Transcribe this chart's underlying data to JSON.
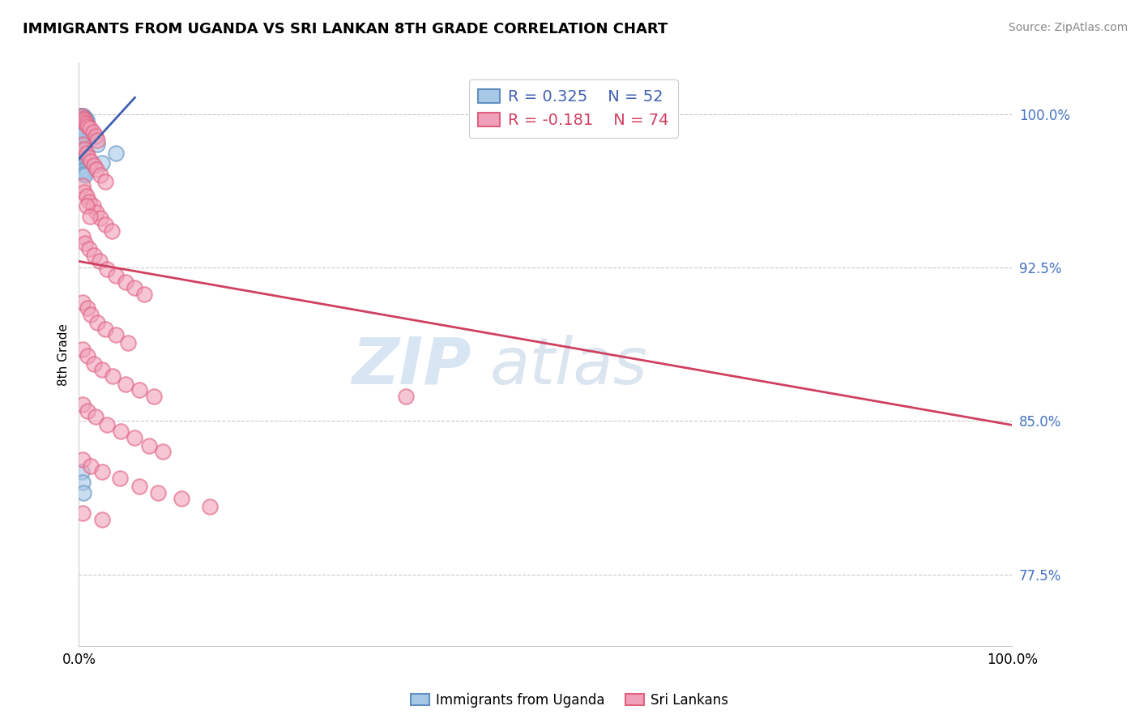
{
  "title": "IMMIGRANTS FROM UGANDA VS SRI LANKAN 8TH GRADE CORRELATION CHART",
  "source": "Source: ZipAtlas.com",
  "ylabel": "8th Grade",
  "legend_r1": "R = 0.325",
  "legend_n1": "N = 52",
  "legend_r2": "R = -0.181",
  "legend_n2": "N = 74",
  "color_blue": "#A8C8E8",
  "color_pink": "#F0A0B8",
  "edge_blue": "#6090C0",
  "edge_pink": "#E06080",
  "trendline_blue": "#4060B0",
  "trendline_pink": "#D04060",
  "watermark_color": "#C8DCF0",
  "legend_label1": "Immigrants from Uganda",
  "legend_label2": "Sri Lankans",
  "x_range": [
    0.0,
    1.0
  ],
  "y_range": [
    0.74,
    1.025
  ],
  "ytick_vals": [
    0.775,
    0.85,
    0.925,
    1.0
  ],
  "ytick_labels": [
    "77.5%",
    "85.0%",
    "92.5%",
    "100.0%"
  ],
  "blue_trend_x": [
    0.0,
    0.06
  ],
  "blue_trend_y": [
    0.978,
    1.008
  ],
  "pink_trend_x": [
    0.0,
    1.0
  ],
  "pink_trend_y": [
    0.928,
    0.848
  ],
  "blue_x": [
    0.002,
    0.003,
    0.004,
    0.005,
    0.005,
    0.006,
    0.007,
    0.007,
    0.008,
    0.008,
    0.003,
    0.004,
    0.005,
    0.006,
    0.007,
    0.008,
    0.009,
    0.01,
    0.011,
    0.012,
    0.003,
    0.004,
    0.005,
    0.006,
    0.007,
    0.02,
    0.003,
    0.004,
    0.005,
    0.006,
    0.003,
    0.004,
    0.005,
    0.04,
    0.003,
    0.004,
    0.005,
    0.006,
    0.025,
    0.003,
    0.003,
    0.004,
    0.005,
    0.006,
    0.007,
    0.003,
    0.004,
    0.005,
    0.003,
    0.004,
    0.003,
    0.005
  ],
  "blue_y": [
    0.999,
    0.999,
    0.998,
    0.998,
    0.999,
    0.998,
    0.997,
    0.998,
    0.996,
    0.997,
    0.997,
    0.996,
    0.996,
    0.995,
    0.995,
    0.994,
    0.993,
    0.992,
    0.991,
    0.99,
    0.993,
    0.992,
    0.991,
    0.99,
    0.989,
    0.985,
    0.988,
    0.987,
    0.986,
    0.985,
    0.984,
    0.983,
    0.982,
    0.981,
    0.98,
    0.979,
    0.978,
    0.977,
    0.976,
    0.975,
    0.974,
    0.973,
    0.972,
    0.971,
    0.97,
    0.825,
    0.82,
    0.815,
    0.996,
    0.994,
    0.992,
    0.99
  ],
  "pink_x": [
    0.003,
    0.005,
    0.006,
    0.007,
    0.008,
    0.009,
    0.012,
    0.015,
    0.018,
    0.02,
    0.004,
    0.006,
    0.008,
    0.01,
    0.013,
    0.016,
    0.019,
    0.023,
    0.028,
    0.004,
    0.006,
    0.008,
    0.011,
    0.015,
    0.019,
    0.023,
    0.028,
    0.035,
    0.008,
    0.012,
    0.004,
    0.007,
    0.011,
    0.016,
    0.022,
    0.03,
    0.04,
    0.05,
    0.06,
    0.07,
    0.004,
    0.009,
    0.013,
    0.02,
    0.028,
    0.04,
    0.053,
    0.004,
    0.009,
    0.016,
    0.025,
    0.036,
    0.05,
    0.065,
    0.08,
    0.004,
    0.009,
    0.018,
    0.03,
    0.045,
    0.06,
    0.075,
    0.09,
    0.004,
    0.013,
    0.025,
    0.044,
    0.065,
    0.085,
    0.11,
    0.14,
    0.004,
    0.025,
    0.35
  ],
  "pink_y": [
    0.999,
    0.998,
    0.997,
    0.996,
    0.995,
    0.994,
    0.993,
    0.991,
    0.989,
    0.987,
    0.985,
    0.983,
    0.981,
    0.979,
    0.977,
    0.975,
    0.973,
    0.97,
    0.967,
    0.965,
    0.962,
    0.96,
    0.957,
    0.955,
    0.952,
    0.949,
    0.946,
    0.943,
    0.955,
    0.95,
    0.94,
    0.937,
    0.934,
    0.931,
    0.928,
    0.924,
    0.921,
    0.918,
    0.915,
    0.912,
    0.908,
    0.905,
    0.902,
    0.898,
    0.895,
    0.892,
    0.888,
    0.885,
    0.882,
    0.878,
    0.875,
    0.872,
    0.868,
    0.865,
    0.862,
    0.858,
    0.855,
    0.852,
    0.848,
    0.845,
    0.842,
    0.838,
    0.835,
    0.831,
    0.828,
    0.825,
    0.822,
    0.818,
    0.815,
    0.812,
    0.808,
    0.805,
    0.802,
    0.862
  ]
}
